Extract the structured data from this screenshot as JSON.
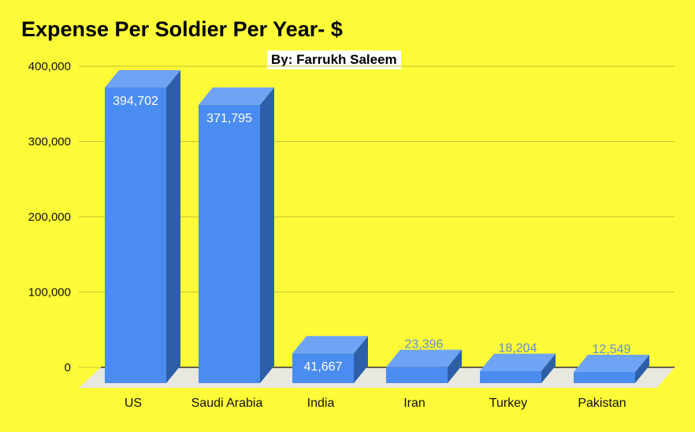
{
  "chart_data": {
    "type": "bar",
    "title": "Expense Per Soldier Per Year- $",
    "subtitle": "By: Farrukh Saleem",
    "categories": [
      "US",
      "Saudi Arabia",
      "India",
      "Iran",
      "Turkey",
      "Pakistan"
    ],
    "values": [
      394702,
      371795,
      41667,
      23396,
      18204,
      12549
    ],
    "data_labels": [
      "394,702",
      "371,795",
      "41,667",
      "23,396",
      "18,204",
      "12,549"
    ],
    "y_ticks": [
      0,
      100000,
      200000,
      300000,
      400000
    ],
    "y_tick_labels": [
      "0",
      "100,000",
      "200,000",
      "300,000",
      "400,000"
    ],
    "ylim": [
      0,
      400000
    ],
    "xlabel": "",
    "ylabel": "",
    "grid": true,
    "style": "3d-column",
    "colors": {
      "background": "#fdfb37",
      "bar_front": "#4a8cf0",
      "bar_top": "#6fa3f4",
      "bar_side": "#2d5fa8",
      "floor": "#e8e8e0",
      "gridline": "#c9c634",
      "label_inside": "#ffffff",
      "label_outside": "#5c8fd6"
    }
  }
}
